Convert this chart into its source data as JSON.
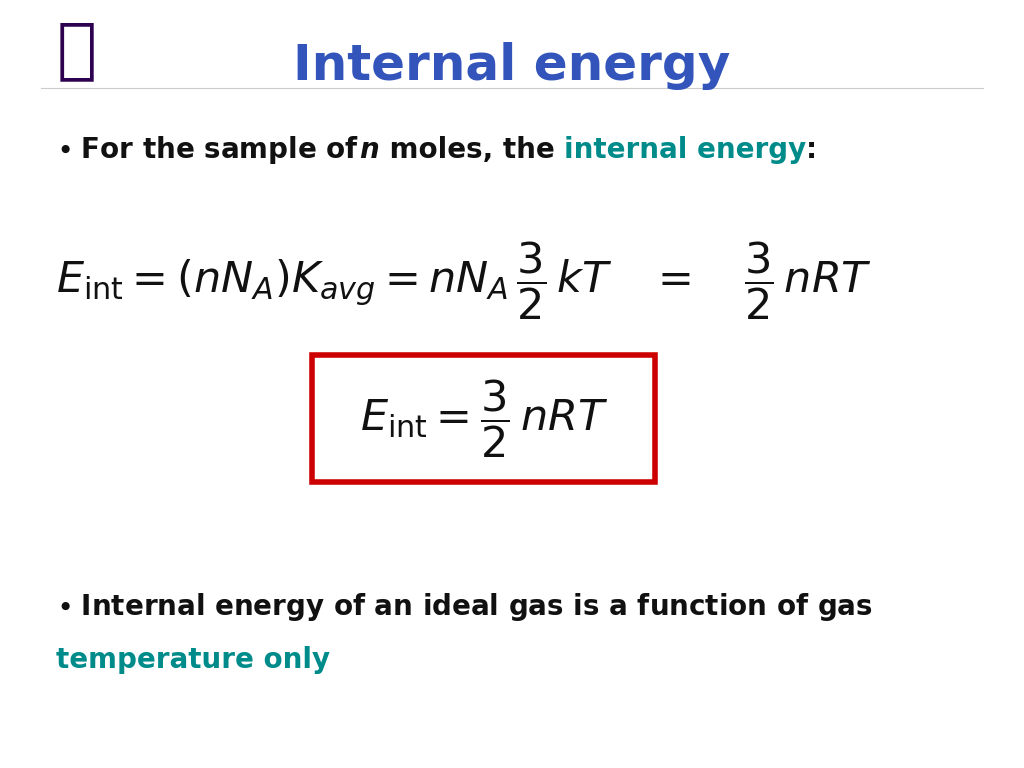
{
  "title": "Internal energy",
  "title_color": "#3355bb",
  "background_color": "#ffffff",
  "box_color": "#cc0000",
  "teal_color": "#008B8B"
}
